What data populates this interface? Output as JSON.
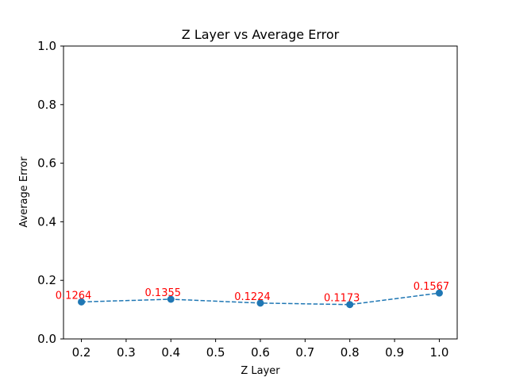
{
  "chart_data": {
    "type": "line",
    "title": "Z Layer vs Average Error",
    "xlabel": "Z Layer",
    "ylabel": "Average Error",
    "x": [
      0.2,
      0.4,
      0.6,
      0.8,
      1.0
    ],
    "series": [
      {
        "values": [
          0.1264,
          0.1355,
          0.1224,
          0.1173,
          0.1567
        ],
        "data_labels": [
          "0.1264",
          "0.1355",
          "0.1224",
          "0.1173",
          "0.1567"
        ],
        "color": "#1f77b4",
        "line_style": "dashed",
        "marker": "circle"
      }
    ],
    "xlim": [
      0.16,
      1.04
    ],
    "ylim": [
      0.0,
      1.0
    ],
    "xticks": [
      "0.2",
      "0.3",
      "0.4",
      "0.5",
      "0.6",
      "0.7",
      "0.8",
      "0.9",
      "1.0"
    ],
    "yticks": [
      "0.0",
      "0.2",
      "0.4",
      "0.6",
      "0.8",
      "1.0"
    ],
    "data_label_color": "#ff0000",
    "grid": false,
    "legend": "none"
  }
}
